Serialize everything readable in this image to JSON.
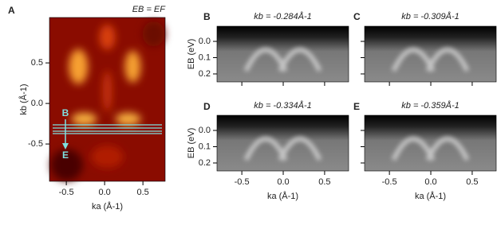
{
  "chart_data": [
    {
      "type": "heatmap",
      "label": "A",
      "title": "EB = EF",
      "xlabel": "ka (Å-1)",
      "ylabel": "kb (Å-1)",
      "xlim": [
        -0.72,
        0.79
      ],
      "ylim": [
        -0.96,
        1.06
      ],
      "xticks": [
        -0.5,
        0.0,
        0.5
      ],
      "yticks": [
        -0.5,
        0.0,
        0.5
      ],
      "xtick_labels": [
        "-0.5",
        "0.0",
        "0.5"
      ],
      "ytick_labels": [
        "-0.5",
        "0.0",
        "0.5"
      ],
      "annotations": [
        "B",
        "E"
      ],
      "colormap": "hot"
    },
    {
      "type": "heatmap",
      "label": "B",
      "title": "kb = -0.284Å-1",
      "ylabel": "EB (eV)",
      "xlim": [
        -0.8,
        0.79
      ],
      "ylim": [
        0.249,
        -0.093
      ],
      "xticks": [
        -0.5,
        0.0,
        0.5
      ],
      "yticks": [
        0.0,
        0.1,
        0.2
      ],
      "ytick_labels": [
        "0.0",
        "0.1",
        "0.2"
      ],
      "colormap": "gray"
    },
    {
      "type": "heatmap",
      "label": "C",
      "title": "kb = -0.309Å-1",
      "xlim": [
        -0.8,
        0.79
      ],
      "ylim": [
        0.249,
        -0.093
      ],
      "xticks": [
        -0.5,
        0.0,
        0.5
      ],
      "yticks": [
        0.0,
        0.1,
        0.2
      ],
      "colormap": "gray"
    },
    {
      "type": "heatmap",
      "label": "D",
      "title": "kb = -0.334Å-1",
      "xlabel": "ka (Å-1)",
      "ylabel": "EB (eV)",
      "xlim": [
        -0.8,
        0.79
      ],
      "ylim": [
        0.249,
        -0.093
      ],
      "xticks": [
        -0.5,
        0.0,
        0.5
      ],
      "yticks": [
        0.0,
        0.1,
        0.2
      ],
      "xtick_labels": [
        "-0.5",
        "0.0",
        "0.5"
      ],
      "ytick_labels": [
        "0.0",
        "0.1",
        "0.2"
      ],
      "colormap": "gray"
    },
    {
      "type": "heatmap",
      "label": "E",
      "title": "kb = -0.359Å-1",
      "xlabel": "ka (Å-1)",
      "xlim": [
        -0.8,
        0.79
      ],
      "ylim": [
        0.249,
        -0.093
      ],
      "xticks": [
        -0.5,
        0.0,
        0.5
      ],
      "yticks": [
        0.0,
        0.1,
        0.2
      ],
      "xtick_labels": [
        "-0.5",
        "0.0",
        "0.5"
      ],
      "colormap": "gray"
    }
  ]
}
